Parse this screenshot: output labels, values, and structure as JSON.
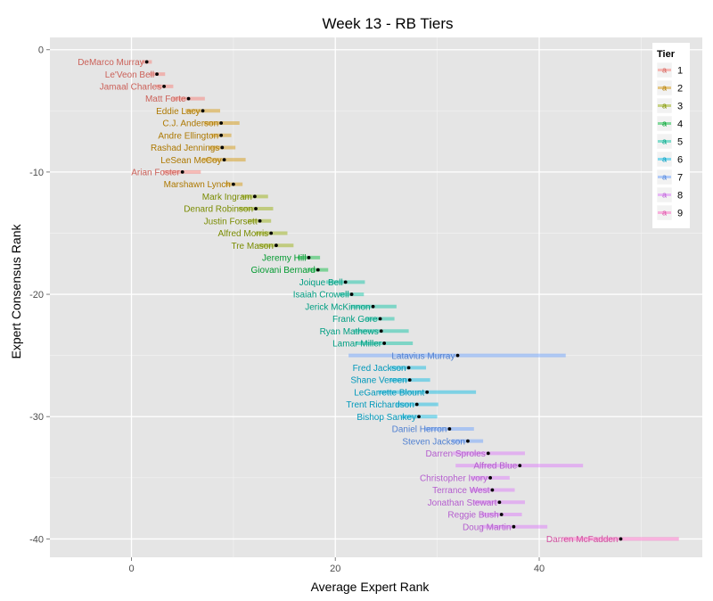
{
  "chart_data": {
    "type": "scatter",
    "title": "Week 13 - RB Tiers",
    "xlabel": "Average Expert Rank",
    "ylabel": "Expert Consensus Rank",
    "xlim": [
      -8,
      56
    ],
    "ylim": [
      -41.5,
      1
    ],
    "x_ticks": [
      0,
      20,
      40
    ],
    "y_ticks": [
      0,
      -10,
      -20,
      -30,
      -40
    ],
    "grid": true,
    "legend": {
      "title": "Tier",
      "position": "top-right",
      "key_glyph": "a",
      "entries": [
        "1",
        "2",
        "3",
        "4",
        "5",
        "6",
        "7",
        "8",
        "9"
      ]
    },
    "tier_colors": {
      "1": "#F8766D",
      "2": "#D39200",
      "3": "#93AA00",
      "4": "#00BA38",
      "5": "#00C19F",
      "6": "#00B9E3",
      "7": "#619CFF",
      "8": "#DB72FB",
      "9": "#FF61C3"
    },
    "points": [
      {
        "name": "DeMarco Murray",
        "rank": -1,
        "avg": 1.5,
        "min": 1.0,
        "max": 2.0,
        "tier": "1"
      },
      {
        "name": "Le'Veon Bell",
        "rank": -2,
        "avg": 2.5,
        "min": 1.8,
        "max": 3.3,
        "tier": "1"
      },
      {
        "name": "Jamaal Charles",
        "rank": -3,
        "avg": 3.2,
        "min": 2.4,
        "max": 4.1,
        "tier": "1"
      },
      {
        "name": "Matt Forte",
        "rank": -4,
        "avg": 5.6,
        "min": 4.0,
        "max": 7.2,
        "tier": "1"
      },
      {
        "name": "Eddie Lacy",
        "rank": -5,
        "avg": 7.0,
        "min": 5.3,
        "max": 8.7,
        "tier": "2"
      },
      {
        "name": "C.J. Anderson",
        "rank": -6,
        "avg": 8.8,
        "min": 7.1,
        "max": 10.6,
        "tier": "2"
      },
      {
        "name": "Andre Ellington",
        "rank": -7,
        "avg": 8.8,
        "min": 7.8,
        "max": 9.8,
        "tier": "2"
      },
      {
        "name": "Rashad Jennings",
        "rank": -8,
        "avg": 8.9,
        "min": 7.6,
        "max": 10.2,
        "tier": "2"
      },
      {
        "name": "LeSean McCoy",
        "rank": -9,
        "avg": 9.1,
        "min": 6.9,
        "max": 11.2,
        "tier": "2"
      },
      {
        "name": "Arian Foster",
        "rank": -10,
        "avg": 5.0,
        "min": 3.1,
        "max": 6.8,
        "tier": "1"
      },
      {
        "name": "Marshawn Lynch",
        "rank": -11,
        "avg": 10.0,
        "min": 9.2,
        "max": 10.9,
        "tier": "2"
      },
      {
        "name": "Mark Ingram",
        "rank": -12,
        "avg": 12.1,
        "min": 10.8,
        "max": 13.4,
        "tier": "3"
      },
      {
        "name": "Denard Robinson",
        "rank": -13,
        "avg": 12.2,
        "min": 10.5,
        "max": 13.9,
        "tier": "3"
      },
      {
        "name": "Justin Forsett",
        "rank": -14,
        "avg": 12.6,
        "min": 11.4,
        "max": 13.7,
        "tier": "3"
      },
      {
        "name": "Alfred Morris",
        "rank": -15,
        "avg": 13.7,
        "min": 12.2,
        "max": 15.3,
        "tier": "3"
      },
      {
        "name": "Tre Mason",
        "rank": -16,
        "avg": 14.2,
        "min": 12.5,
        "max": 15.9,
        "tier": "3"
      },
      {
        "name": "Jeremy Hill",
        "rank": -17,
        "avg": 17.4,
        "min": 16.3,
        "max": 18.5,
        "tier": "4"
      },
      {
        "name": "Giovani Bernard",
        "rank": -18,
        "avg": 18.3,
        "min": 17.3,
        "max": 19.3,
        "tier": "4"
      },
      {
        "name": "Joique Bell",
        "rank": -19,
        "avg": 21.0,
        "min": 19.1,
        "max": 22.9,
        "tier": "5"
      },
      {
        "name": "Isaiah Crowell",
        "rank": -20,
        "avg": 21.6,
        "min": 20.4,
        "max": 22.8,
        "tier": "5"
      },
      {
        "name": "Jerick McKinnon",
        "rank": -21,
        "avg": 23.7,
        "min": 21.5,
        "max": 26.0,
        "tier": "5"
      },
      {
        "name": "Frank Gore",
        "rank": -22,
        "avg": 24.4,
        "min": 23.0,
        "max": 25.8,
        "tier": "5"
      },
      {
        "name": "Ryan Mathews",
        "rank": -23,
        "avg": 24.5,
        "min": 21.8,
        "max": 27.2,
        "tier": "5"
      },
      {
        "name": "Lamar Miller",
        "rank": -24,
        "avg": 24.8,
        "min": 22.0,
        "max": 27.6,
        "tier": "5"
      },
      {
        "name": "Latavius Murray",
        "rank": -25,
        "avg": 32.0,
        "min": 21.3,
        "max": 42.6,
        "tier": "7"
      },
      {
        "name": "Fred Jackson",
        "rank": -26,
        "avg": 27.2,
        "min": 25.4,
        "max": 28.9,
        "tier": "6"
      },
      {
        "name": "Shane Vereen",
        "rank": -27,
        "avg": 27.3,
        "min": 25.3,
        "max": 29.3,
        "tier": "6"
      },
      {
        "name": "LeGarrette Blount",
        "rank": -28,
        "avg": 29.0,
        "min": 24.2,
        "max": 33.8,
        "tier": "6"
      },
      {
        "name": "Trent Richardson",
        "rank": -29,
        "avg": 28.0,
        "min": 25.9,
        "max": 30.1,
        "tier": "6"
      },
      {
        "name": "Bishop Sankey",
        "rank": -30,
        "avg": 28.2,
        "min": 26.4,
        "max": 30.0,
        "tier": "6"
      },
      {
        "name": "Daniel Herron",
        "rank": -31,
        "avg": 31.2,
        "min": 28.8,
        "max": 33.6,
        "tier": "7"
      },
      {
        "name": "Steven Jackson",
        "rank": -32,
        "avg": 33.0,
        "min": 31.4,
        "max": 34.5,
        "tier": "7"
      },
      {
        "name": "Darren Sproles",
        "rank": -33,
        "avg": 35.0,
        "min": 31.5,
        "max": 38.6,
        "tier": "8"
      },
      {
        "name": "Alfred Blue",
        "rank": -34,
        "avg": 38.1,
        "min": 31.8,
        "max": 44.3,
        "tier": "8"
      },
      {
        "name": "Christopher Ivory",
        "rank": -35,
        "avg": 35.2,
        "min": 33.3,
        "max": 37.1,
        "tier": "8"
      },
      {
        "name": "Terrance West",
        "rank": -36,
        "avg": 35.4,
        "min": 33.2,
        "max": 37.6,
        "tier": "8"
      },
      {
        "name": "Jonathan Stewart",
        "rank": -37,
        "avg": 36.1,
        "min": 33.6,
        "max": 38.6,
        "tier": "8"
      },
      {
        "name": "Reggie Bush",
        "rank": -38,
        "avg": 36.3,
        "min": 34.3,
        "max": 38.3,
        "tier": "8"
      },
      {
        "name": "Doug Martin",
        "rank": -39,
        "avg": 37.5,
        "min": 34.3,
        "max": 40.8,
        "tier": "8"
      },
      {
        "name": "Darren McFadden",
        "rank": -40,
        "avg": 48.0,
        "min": 42.3,
        "max": 53.7,
        "tier": "9"
      }
    ]
  }
}
